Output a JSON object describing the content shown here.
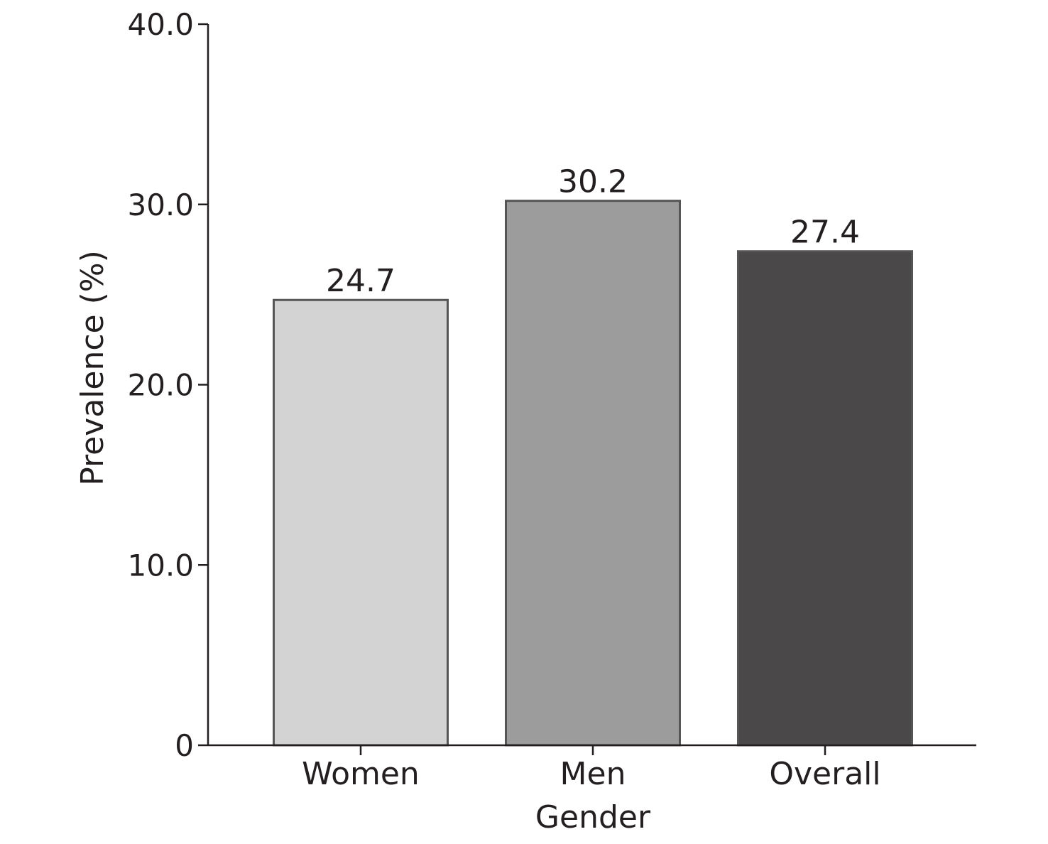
{
  "chart_data": {
    "type": "bar",
    "title": "",
    "xlabel": "Gender",
    "ylabel": "Prevalence (%)",
    "categories": [
      "Women",
      "Men",
      "Overall"
    ],
    "values": [
      24.7,
      30.2,
      27.4
    ],
    "data_labels": [
      "24.7",
      "30.2",
      "27.4"
    ],
    "ylim": [
      0,
      40
    ],
    "yticks": [
      0,
      10,
      20,
      30,
      40
    ],
    "ytick_labels": [
      "0",
      "10.0",
      "20.0",
      "30.0",
      "40.0"
    ],
    "grid": false,
    "legend": "none",
    "colors": [
      "#d3d3d3",
      "#9d9c9d",
      "#4b4849"
    ],
    "bar_edge_color": "#555555",
    "axis_color": "#231f20"
  }
}
